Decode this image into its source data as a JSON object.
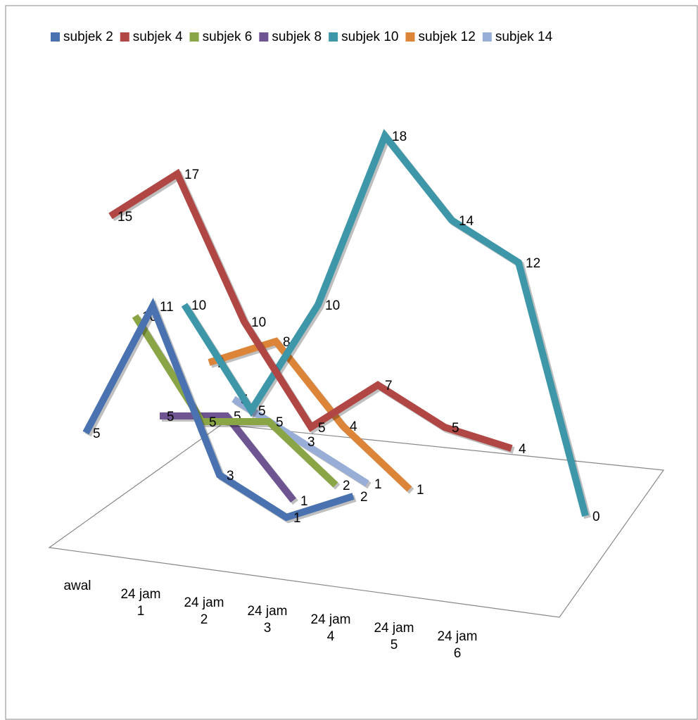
{
  "chart_data": {
    "type": "line3d",
    "categories": [
      "awal",
      "24 jam 1",
      "24 jam 2",
      "24 jam 3",
      "24 jam 4",
      "24 jam 5",
      "24 jam 6"
    ],
    "series": [
      {
        "name": "subjek 2",
        "color": "#4a72b0",
        "values": [
          5,
          11,
          3,
          1,
          2,
          null,
          null
        ]
      },
      {
        "name": "subjek 4",
        "color": "#b04744",
        "values": [
          15,
          17,
          10,
          5,
          7,
          5,
          4
        ]
      },
      {
        "name": "subjek 6",
        "color": "#8aa546",
        "values": [
          10,
          5,
          5,
          2,
          null,
          null,
          null
        ]
      },
      {
        "name": "subjek 8",
        "color": "#6e5592",
        "values": [
          5,
          5,
          1,
          null,
          null,
          null,
          null
        ]
      },
      {
        "name": "subjek 10",
        "color": "#3e97a9",
        "values": [
          10,
          5,
          10,
          18,
          14,
          12,
          0
        ]
      },
      {
        "name": "subjek 12",
        "color": "#dc8437",
        "values": [
          7,
          8,
          4,
          1,
          null,
          null,
          null
        ]
      },
      {
        "name": "subjek 14",
        "color": "#98aed6",
        "values": [
          5,
          3,
          1,
          null,
          null,
          null,
          null
        ]
      }
    ],
    "legend": "top"
  }
}
